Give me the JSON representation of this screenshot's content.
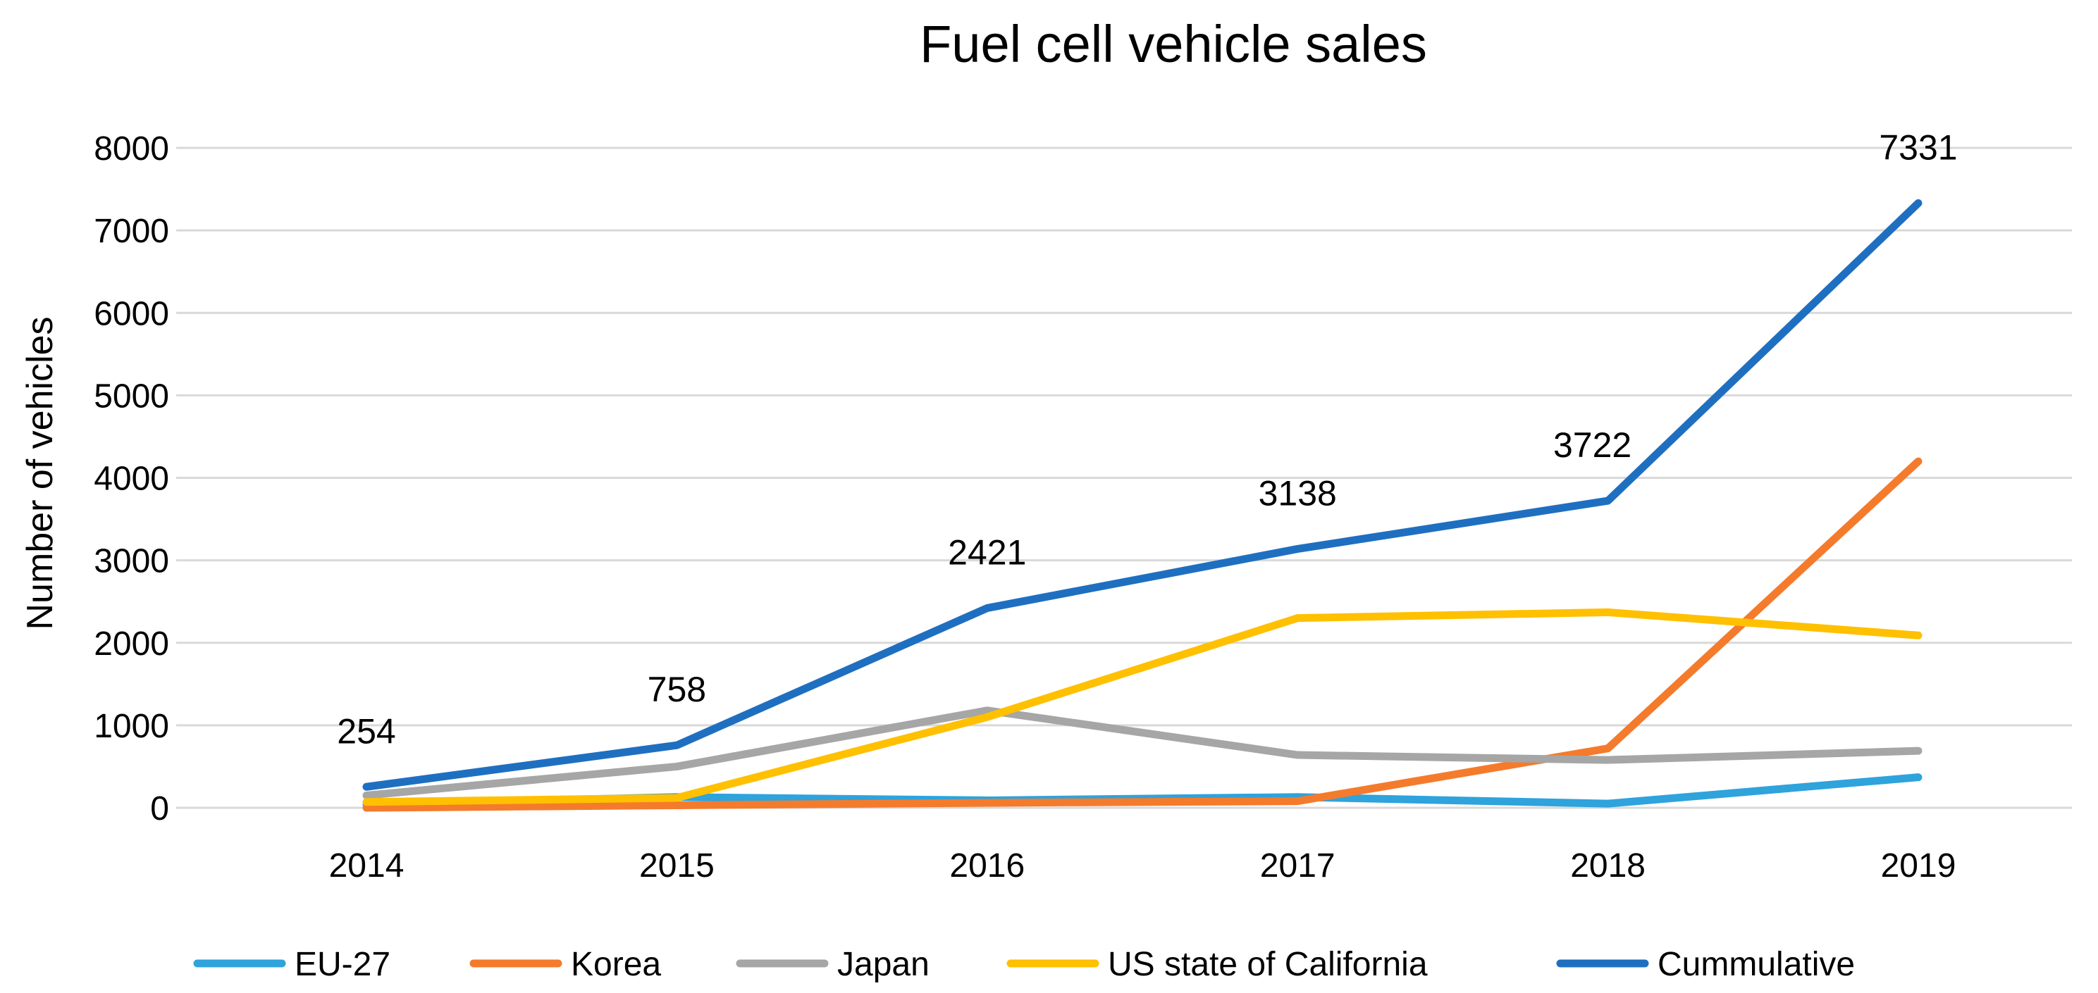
{
  "chart_data": {
    "type": "line",
    "title": "Fuel cell vehicle sales",
    "xlabel": "",
    "ylabel": "Number of vehicles",
    "categories": [
      "2014",
      "2015",
      "2016",
      "2017",
      "2018",
      "2019"
    ],
    "ylim": [
      0,
      8000
    ],
    "yticks": [
      0,
      1000,
      2000,
      3000,
      4000,
      5000,
      6000,
      7000,
      8000
    ],
    "grid": true,
    "legend_position": "bottom",
    "series": [
      {
        "name": "EU-27",
        "color": "#2ea3dc",
        "values": [
          40,
          130,
          90,
          130,
          50,
          370
        ]
      },
      {
        "name": "Korea",
        "color": "#f47b2c",
        "values": [
          0,
          30,
          60,
          80,
          720,
          4200
        ]
      },
      {
        "name": "Japan",
        "color": "#a6a6a6",
        "values": [
          150,
          500,
          1180,
          640,
          580,
          690
        ]
      },
      {
        "name": "US state of California",
        "color": "#ffc000",
        "values": [
          70,
          120,
          1100,
          2300,
          2370,
          2090
        ]
      },
      {
        "name": "Cummulative",
        "color": "#1f6fc1",
        "values": [
          254,
          758,
          2421,
          3138,
          3722,
          7331
        ]
      }
    ],
    "data_labels": {
      "series": "Cummulative",
      "values": [
        "254",
        "758",
        "2421",
        "3138",
        "3722",
        "7331"
      ]
    }
  }
}
